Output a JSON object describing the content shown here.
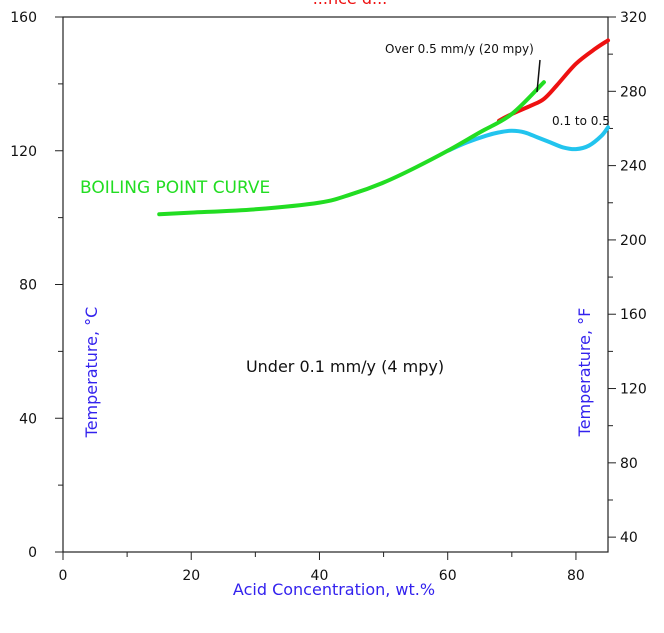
{
  "chart_data": {
    "type": "line",
    "title_fragment": "...nce d...",
    "xlabel": "Acid Concentration, wt.%",
    "ylabel_left": "Temperature, °C",
    "ylabel_right": "Temperature, °F",
    "xlim": [
      0,
      85
    ],
    "ylim": [
      0,
      160
    ],
    "ylim_right": [
      32,
      320
    ],
    "x_ticks": [
      0,
      20,
      40,
      60,
      80
    ],
    "y_ticks": [
      0,
      40,
      80,
      120,
      160
    ],
    "y_ticks_right": [
      40,
      80,
      120,
      160,
      200,
      240,
      280,
      320
    ],
    "grid": false,
    "series": [
      {
        "name": "BOILING POINT CURVE",
        "color": "#22dd22",
        "points": [
          [
            15,
            101
          ],
          [
            20,
            101.5
          ],
          [
            30,
            102.5
          ],
          [
            40,
            104.5
          ],
          [
            45,
            107
          ],
          [
            50,
            110.5
          ],
          [
            55,
            115
          ],
          [
            60,
            120
          ],
          [
            65,
            125.5
          ],
          [
            70,
            131
          ],
          [
            75,
            140.5
          ]
        ]
      },
      {
        "name": "Over 0.5 mm/y (20 mpy)",
        "color": "#ee1111",
        "points": [
          [
            68,
            129
          ],
          [
            70,
            131
          ],
          [
            73,
            133.5
          ],
          [
            75,
            135.5
          ],
          [
            77,
            139.5
          ],
          [
            80,
            146
          ],
          [
            83,
            150.5
          ],
          [
            85,
            153
          ]
        ]
      },
      {
        "name": "0.1 to 0.5",
        "color": "#22c4ee",
        "points": [
          [
            60,
            120
          ],
          [
            63,
            122.5
          ],
          [
            66,
            124.5
          ],
          [
            68,
            125.5
          ],
          [
            70,
            126
          ],
          [
            72,
            125.5
          ],
          [
            74,
            124
          ],
          [
            76,
            122.5
          ],
          [
            78,
            121
          ],
          [
            80,
            120.5
          ],
          [
            82,
            121.5
          ],
          [
            84,
            124.5
          ],
          [
            85,
            127
          ]
        ]
      }
    ],
    "annotations": {
      "boiling": "BOILING POINT CURVE",
      "over": "Over 0.5 mm/y (20 mpy)",
      "mid": "0.1 to 0.5",
      "under": "Under 0.1 mm/y (4 mpy)"
    },
    "colors": {
      "axis_title": "#3322ee",
      "boiling_text": "#22dd22",
      "title": "#ee1111",
      "text": "#111111"
    }
  }
}
